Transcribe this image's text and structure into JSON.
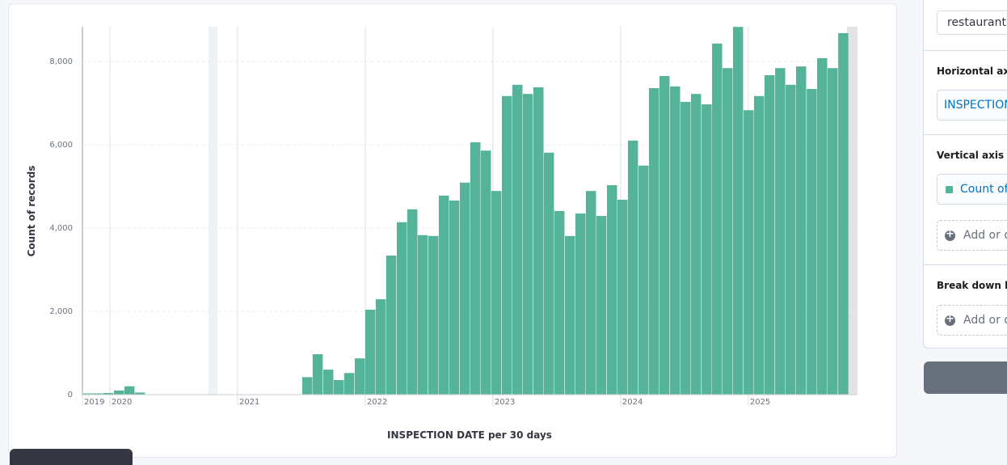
{
  "chart_data": {
    "type": "bar",
    "ylabel": "Count of records",
    "xlabel": "INSPECTION DATE per 30 days",
    "color": "#54b399",
    "grid": true,
    "x": [
      2019.785,
      2019.867,
      2019.949,
      2020.032,
      2020.114,
      2020.196,
      2021.095,
      2021.506,
      2021.588,
      2021.671,
      2021.753,
      2021.835,
      2021.918,
      2022.0,
      2022.082,
      2022.164,
      2022.247,
      2022.329,
      2022.411,
      2022.494,
      2022.576,
      2022.658,
      2022.741,
      2022.823,
      2022.905,
      2022.987,
      2023.07,
      2023.152,
      2023.234,
      2023.317,
      2023.399,
      2023.481,
      2023.564,
      2023.646,
      2023.728,
      2023.81,
      2023.893,
      2023.975,
      2024.057,
      2024.14,
      2024.222,
      2024.304,
      2024.387,
      2024.469,
      2024.551,
      2024.634,
      2024.716,
      2024.798,
      2024.88,
      2024.963,
      2025.045,
      2025.127,
      2025.21,
      2025.292,
      2025.374,
      2025.457,
      2025.539,
      2025.621,
      2025.704
    ],
    "values": [
      30,
      30,
      40,
      100,
      200,
      50,
      10,
      420,
      970,
      600,
      350,
      520,
      870,
      2040,
      2290,
      3340,
      4140,
      4450,
      3830,
      3810,
      4780,
      4660,
      5090,
      6060,
      5860,
      4890,
      7170,
      7440,
      7220,
      7380,
      5810,
      4410,
      3810,
      4350,
      4890,
      4290,
      5030,
      4680,
      6100,
      5500,
      7360,
      7650,
      7400,
      7030,
      7220,
      6970,
      8430,
      7840,
      8830,
      6830,
      7170,
      7670,
      7840,
      7440,
      7880,
      7340,
      8080,
      7840,
      8680
    ],
    "xlim": [
      2019.785,
      2025.855
    ],
    "xticks": [
      {
        "value": 2019.785,
        "label": "2019"
      },
      2020,
      2021,
      2022,
      2023,
      2024,
      2025
    ],
    "ylim": [
      0,
      8835
    ],
    "yticks": [
      0,
      {
        "value": 2000,
        "label": "2,000"
      },
      {
        "value": 4000,
        "label": "4,000"
      },
      {
        "value": 6000,
        "label": "6,000"
      },
      {
        "value": 8000,
        "label": "8,000"
      }
    ]
  },
  "sidebar": {
    "index": "restaurantn",
    "horizontal_axis": {
      "title": "Horizontal axis",
      "field": "INSPECTION"
    },
    "vertical_axis": {
      "title": "Vertical axis",
      "field": "Count of",
      "add": "Add or d"
    },
    "break_down": {
      "title": "Break down by",
      "add": "Add or d"
    }
  }
}
